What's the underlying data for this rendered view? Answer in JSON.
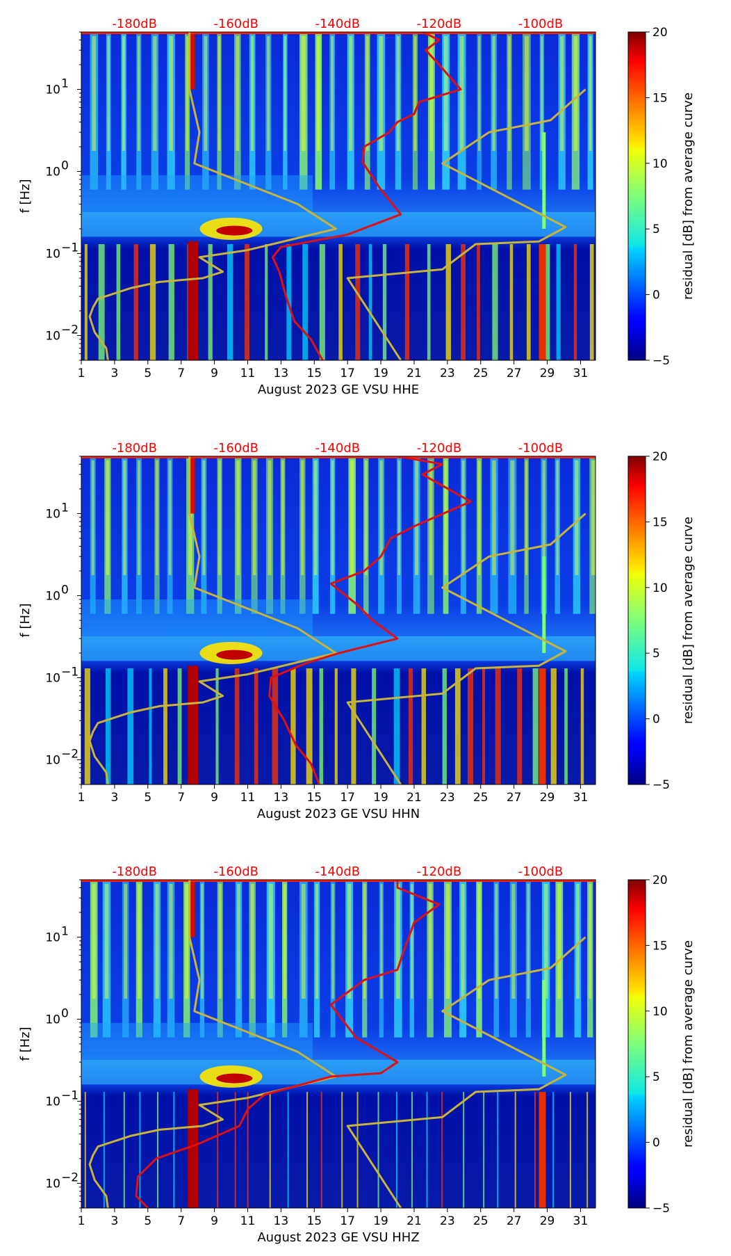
{
  "chart_data": [
    {
      "type": "heatmap",
      "xlabel": "August 2023 GE VSU  HHE",
      "ylabel": "f [Hz]",
      "x_ticks": [
        1,
        3,
        5,
        7,
        9,
        11,
        13,
        15,
        17,
        19,
        21,
        23,
        25,
        27,
        29,
        31
      ],
      "xlim": [
        1,
        31.9
      ],
      "ylim_hz": [
        0.005,
        50
      ],
      "y_ticks": [
        {
          "value": 0.01,
          "base": "10",
          "exp": "−2"
        },
        {
          "value": 0.1,
          "base": "10",
          "exp": "−1"
        },
        {
          "value": 1,
          "base": "10",
          "exp": "0"
        },
        {
          "value": 10,
          "base": "10",
          "exp": "1"
        }
      ],
      "top_axis_labels": [
        "-180dB",
        "-160dB",
        "-140dB",
        "-120dB",
        "-100dB"
      ],
      "top_axis_day_positions": [
        4.2,
        10.3,
        16.4,
        22.5,
        28.6
      ],
      "colorbar": {
        "label": "residual [dB] from average curve",
        "min": -5,
        "max": 20,
        "ticks": [
          20,
          15,
          10,
          5,
          0,
          -5
        ],
        "tick_labels": [
          "20",
          "15",
          "10",
          "5",
          "0",
          "−5"
        ]
      },
      "model_curve_points": [
        [
          2.6,
          0.005
        ],
        [
          2.5,
          0.007
        ],
        [
          1.8,
          0.011
        ],
        [
          1.5,
          0.017
        ],
        [
          1.7,
          0.022
        ],
        [
          2,
          0.028
        ],
        [
          4,
          0.038
        ],
        [
          5.7,
          0.045
        ],
        [
          8.3,
          0.05
        ],
        [
          9.5,
          0.06
        ],
        [
          8.1,
          0.09
        ],
        [
          11,
          0.11
        ],
        [
          16.3,
          0.2
        ],
        [
          14,
          0.4
        ],
        [
          7.8,
          1.25
        ],
        [
          8.1,
          3
        ],
        [
          7.5,
          10
        ],
        [
          7.5,
          50
        ]
      ],
      "model_curve2_points": [
        [
          20.2,
          0.005
        ],
        [
          17,
          0.05
        ],
        [
          22.7,
          0.064
        ],
        [
          24.7,
          0.13
        ],
        [
          28.5,
          0.14
        ],
        [
          30.1,
          0.21
        ],
        [
          22.7,
          1.25
        ],
        [
          25.5,
          3
        ],
        [
          29.2,
          4.2
        ],
        [
          31.3,
          10
        ]
      ],
      "residual_curve_points": [
        [
          15.5,
          0.005
        ],
        [
          14.8,
          0.009
        ],
        [
          13.8,
          0.015
        ],
        [
          13.3,
          0.03
        ],
        [
          12.9,
          0.06
        ],
        [
          12.5,
          0.09
        ],
        [
          13,
          0.12
        ],
        [
          17,
          0.17
        ],
        [
          20.2,
          0.3
        ],
        [
          19,
          0.6
        ],
        [
          17.9,
          1.3
        ],
        [
          18,
          2
        ],
        [
          19.5,
          3
        ],
        [
          20,
          4
        ],
        [
          21,
          5
        ],
        [
          21.3,
          7
        ],
        [
          23.8,
          10
        ],
        [
          22.5,
          20
        ],
        [
          21.7,
          30
        ],
        [
          22.5,
          40
        ],
        [
          21.5,
          50
        ]
      ]
    },
    {
      "type": "heatmap",
      "xlabel": "August 2023 GE VSU  HHN",
      "ylabel": "f [Hz]",
      "x_ticks": [
        1,
        3,
        5,
        7,
        9,
        11,
        13,
        15,
        17,
        19,
        21,
        23,
        25,
        27,
        29,
        31
      ],
      "xlim": [
        1,
        31.9
      ],
      "ylim_hz": [
        0.005,
        50
      ],
      "y_ticks": [
        {
          "value": 0.01,
          "base": "10",
          "exp": "−2"
        },
        {
          "value": 0.1,
          "base": "10",
          "exp": "−1"
        },
        {
          "value": 1,
          "base": "10",
          "exp": "0"
        },
        {
          "value": 10,
          "base": "10",
          "exp": "1"
        }
      ],
      "top_axis_labels": [
        "-180dB",
        "-160dB",
        "-140dB",
        "-120dB",
        "-100dB"
      ],
      "top_axis_day_positions": [
        4.2,
        10.3,
        16.4,
        22.5,
        28.6
      ],
      "colorbar": {
        "label": "residual [dB] from average curve",
        "min": -5,
        "max": 20,
        "ticks": [
          20,
          15,
          10,
          5,
          0,
          -5
        ],
        "tick_labels": [
          "20",
          "15",
          "10",
          "5",
          "0",
          "−5"
        ]
      },
      "model_curve_points": [
        [
          2.6,
          0.005
        ],
        [
          2.5,
          0.007
        ],
        [
          1.8,
          0.011
        ],
        [
          1.5,
          0.017
        ],
        [
          1.7,
          0.022
        ],
        [
          2,
          0.028
        ],
        [
          4,
          0.038
        ],
        [
          5.7,
          0.045
        ],
        [
          8.3,
          0.05
        ],
        [
          9.5,
          0.06
        ],
        [
          8.1,
          0.09
        ],
        [
          11,
          0.11
        ],
        [
          16.3,
          0.2
        ],
        [
          14,
          0.4
        ],
        [
          7.8,
          1.25
        ],
        [
          8.1,
          3
        ],
        [
          7.5,
          10
        ],
        [
          7.5,
          50
        ]
      ],
      "model_curve2_points": [
        [
          20.2,
          0.005
        ],
        [
          17,
          0.05
        ],
        [
          22.7,
          0.064
        ],
        [
          24.7,
          0.13
        ],
        [
          28.5,
          0.14
        ],
        [
          30.1,
          0.21
        ],
        [
          22.7,
          1.25
        ],
        [
          25.5,
          3
        ],
        [
          29.2,
          4.2
        ],
        [
          31.3,
          10
        ]
      ],
      "residual_curve_points": [
        [
          15.3,
          0.005
        ],
        [
          14.8,
          0.009
        ],
        [
          13.9,
          0.015
        ],
        [
          13.2,
          0.03
        ],
        [
          12.3,
          0.06
        ],
        [
          12.4,
          0.1
        ],
        [
          14.5,
          0.15
        ],
        [
          16.5,
          0.2
        ],
        [
          20,
          0.3
        ],
        [
          18.5,
          0.5
        ],
        [
          17.5,
          0.8
        ],
        [
          16,
          1.4
        ],
        [
          18,
          2
        ],
        [
          19,
          3
        ],
        [
          19.6,
          5
        ],
        [
          21,
          7
        ],
        [
          24.4,
          14
        ],
        [
          21.5,
          30
        ],
        [
          22.7,
          40
        ],
        [
          20,
          50
        ]
      ]
    },
    {
      "type": "heatmap",
      "xlabel": "August 2023 GE VSU  HHZ",
      "ylabel": "f [Hz]",
      "x_ticks": [
        1,
        3,
        5,
        7,
        9,
        11,
        13,
        15,
        17,
        19,
        21,
        23,
        25,
        27,
        29,
        31
      ],
      "xlim": [
        1,
        31.9
      ],
      "ylim_hz": [
        0.005,
        50
      ],
      "y_ticks": [
        {
          "value": 0.01,
          "base": "10",
          "exp": "−2"
        },
        {
          "value": 0.1,
          "base": "10",
          "exp": "−1"
        },
        {
          "value": 1,
          "base": "10",
          "exp": "0"
        },
        {
          "value": 10,
          "base": "10",
          "exp": "1"
        }
      ],
      "top_axis_labels": [
        "-180dB",
        "-160dB",
        "-140dB",
        "-120dB",
        "-100dB"
      ],
      "top_axis_day_positions": [
        4.2,
        10.3,
        16.4,
        22.5,
        28.6
      ],
      "colorbar": {
        "label": "residual [dB] from average curve",
        "min": -5,
        "max": 20,
        "ticks": [
          20,
          15,
          10,
          5,
          0,
          -5
        ],
        "tick_labels": [
          "20",
          "15",
          "10",
          "5",
          "0",
          "−5"
        ]
      },
      "model_curve_points": [
        [
          2.6,
          0.005
        ],
        [
          2.5,
          0.007
        ],
        [
          1.8,
          0.011
        ],
        [
          1.5,
          0.017
        ],
        [
          1.7,
          0.022
        ],
        [
          2,
          0.028
        ],
        [
          4,
          0.038
        ],
        [
          5.7,
          0.045
        ],
        [
          8.3,
          0.05
        ],
        [
          9.5,
          0.06
        ],
        [
          8.1,
          0.09
        ],
        [
          11,
          0.11
        ],
        [
          16.3,
          0.2
        ],
        [
          14,
          0.4
        ],
        [
          7.8,
          1.25
        ],
        [
          8.1,
          3
        ],
        [
          7.5,
          10
        ],
        [
          7.5,
          50
        ]
      ],
      "model_curve2_points": [
        [
          20.2,
          0.005
        ],
        [
          17,
          0.05
        ],
        [
          22.7,
          0.064
        ],
        [
          24.7,
          0.13
        ],
        [
          28.5,
          0.14
        ],
        [
          30.1,
          0.21
        ],
        [
          22.7,
          1.25
        ],
        [
          25.5,
          3
        ],
        [
          29.2,
          4.2
        ],
        [
          31.3,
          10
        ]
      ],
      "residual_curve_points": [
        [
          5,
          0.005
        ],
        [
          4.3,
          0.007
        ],
        [
          4.4,
          0.012
        ],
        [
          5.5,
          0.02
        ],
        [
          8,
          0.03
        ],
        [
          10.5,
          0.05
        ],
        [
          11,
          0.08
        ],
        [
          12,
          0.12
        ],
        [
          16,
          0.2
        ],
        [
          19,
          0.22
        ],
        [
          20,
          0.3
        ],
        [
          17.5,
          0.6
        ],
        [
          16,
          1.5
        ],
        [
          18,
          3
        ],
        [
          20,
          4
        ],
        [
          20.4,
          7
        ],
        [
          21,
          15
        ],
        [
          22.5,
          25
        ],
        [
          20,
          40
        ],
        [
          20,
          50
        ]
      ]
    }
  ]
}
